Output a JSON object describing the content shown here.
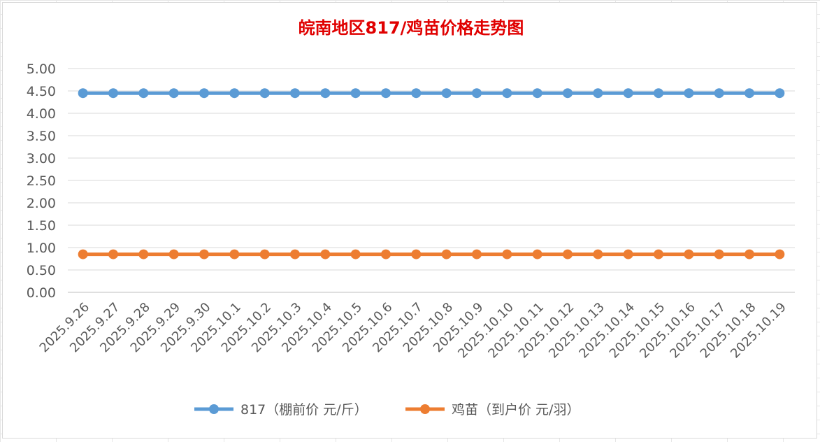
{
  "chart_data": {
    "type": "line",
    "title": "皖南地区817/鸡苗价格走势图",
    "xlabel": "",
    "ylabel": "",
    "ylim": [
      0,
      5
    ],
    "ytick_step": 0.5,
    "grid": true,
    "legend_position": "bottom",
    "categories": [
      "2025.9.26",
      "2025.9.27",
      "2025.9.28",
      "2025.9.29",
      "2025.9.30",
      "2025.10.1",
      "2025.10.2",
      "2025.10.3",
      "2025.10.4",
      "2025.10.5",
      "2025.10.6",
      "2025.10.7",
      "2025.10.8",
      "2025.10.9",
      "2025.10.10",
      "2025.10.11",
      "2025.10.12",
      "2025.10.13",
      "2025.10.14",
      "2025.10.15",
      "2025.10.16",
      "2025.10.17",
      "2025.10.18",
      "2025.10.19"
    ],
    "series": [
      {
        "name": "817（棚前价 元/斤）",
        "color": "#5b9bd5",
        "values": [
          4.45,
          4.45,
          4.45,
          4.45,
          4.45,
          4.45,
          4.45,
          4.45,
          4.45,
          4.45,
          4.45,
          4.45,
          4.45,
          4.45,
          4.45,
          4.45,
          4.45,
          4.45,
          4.45,
          4.45,
          4.45,
          4.45,
          4.45,
          4.45
        ]
      },
      {
        "name": "鸡苗（到户价 元/羽）",
        "color": "#ed7d31",
        "values": [
          0.85,
          0.85,
          0.85,
          0.85,
          0.85,
          0.85,
          0.85,
          0.85,
          0.85,
          0.85,
          0.85,
          0.85,
          0.85,
          0.85,
          0.85,
          0.85,
          0.85,
          0.85,
          0.85,
          0.85,
          0.85,
          0.85,
          0.85,
          0.85
        ]
      }
    ]
  }
}
